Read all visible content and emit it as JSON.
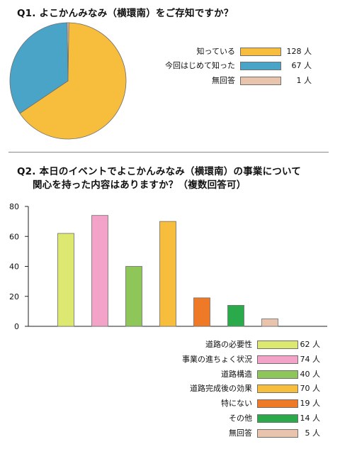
{
  "chart_data": [
    {
      "type": "pie",
      "title": "Q1. よこかんみなみ（横環南）をご存知ですか？",
      "categories": [
        "知っている",
        "今回はじめて知った",
        "無回答"
      ],
      "values": [
        128,
        67,
        1
      ],
      "value_labels": [
        "128 人",
        "67 人",
        "1 人"
      ],
      "colors": [
        "#f7bd3c",
        "#4aa4c8",
        "#e9c4ad"
      ],
      "legend_position": "right"
    },
    {
      "type": "bar",
      "title_lines": [
        "Q2. 本日のイベントでよこかんみなみ（横環南）の事業について",
        "関心を持った内容はありますか？（複数回答可）"
      ],
      "categories": [
        "道路の必要性",
        "事業の進ちょく状況",
        "道路構造",
        "道路完成後の効果",
        "特にない",
        "その他",
        "無回答"
      ],
      "values": [
        62,
        74,
        40,
        70,
        19,
        14,
        5
      ],
      "value_labels": [
        "62 人",
        "74 人",
        "40 人",
        "70 人",
        "19 人",
        "14 人",
        "5 人"
      ],
      "colors": [
        "#dde870",
        "#f2a3c7",
        "#8fc65a",
        "#f7bd3c",
        "#ee7a28",
        "#2aaa4a",
        "#e9c4ad"
      ],
      "ylim": [
        0,
        80
      ],
      "yticks": [
        "0",
        "20",
        "40",
        "60",
        "80"
      ],
      "grid": false,
      "legend_position": "bottom-right"
    }
  ]
}
